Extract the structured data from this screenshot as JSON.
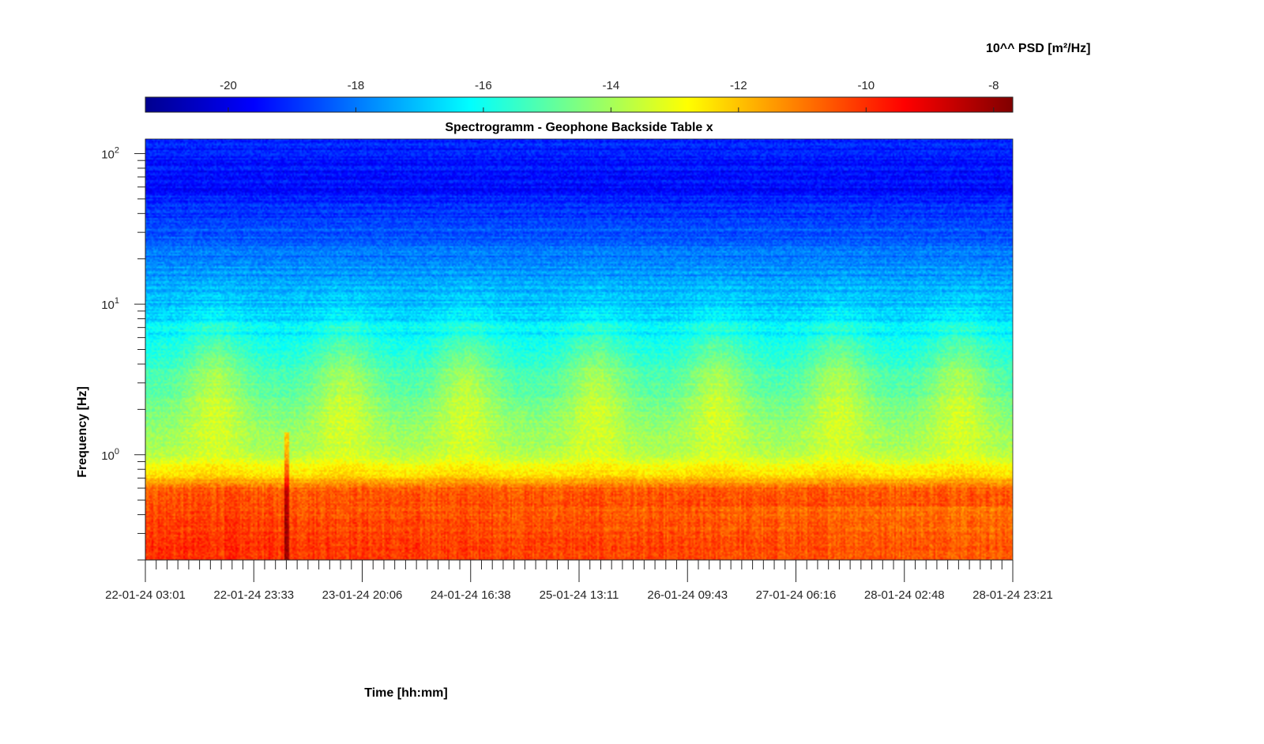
{
  "chart_data": {
    "type": "heatmap",
    "title": "Spectrogramm - Geophone Backside Table x",
    "xlabel": "Time [hh:mm]",
    "ylabel": "Frequency [Hz]",
    "y_scale": "log",
    "ylim": [
      0.2,
      125
    ],
    "y_ticks": [
      {
        "base": "10",
        "exp": "0",
        "value": 1
      },
      {
        "base": "10",
        "exp": "1",
        "value": 10
      },
      {
        "base": "10",
        "exp": "2",
        "value": 100
      }
    ],
    "x_tick_labels": [
      "22-01-24 03:01",
      "22-01-24 23:33",
      "23-01-24 20:06",
      "24-01-24 16:38",
      "25-01-24 13:11",
      "26-01-24 09:43",
      "27-01-24 06:16",
      "28-01-24 02:48",
      "28-01-24 23:21"
    ],
    "colorbar": {
      "label": "10^^ PSD [m²/Hz]",
      "range": [
        -21.3,
        -7.7
      ],
      "ticks": [
        "-20",
        "-18",
        "-16",
        "-14",
        "-12",
        "-10",
        "-8"
      ],
      "tick_values": [
        -20,
        -18,
        -16,
        -14,
        -12,
        -10,
        -8
      ],
      "colormap": "jet",
      "location": "top"
    },
    "psd_profile_log10": [
      {
        "freq": 0.2,
        "value": -9.9
      },
      {
        "freq": 0.4,
        "value": -10.3
      },
      {
        "freq": 0.6,
        "value": -10.8
      },
      {
        "freq": 0.7,
        "value": -12.2
      },
      {
        "freq": 1.0,
        "value": -13.8
      },
      {
        "freq": 2.0,
        "value": -14.6
      },
      {
        "freq": 4.0,
        "value": -15.5
      },
      {
        "freq": 10,
        "value": -17.0
      },
      {
        "freq": 30,
        "value": -18.4
      },
      {
        "freq": 60,
        "value": -19.5
      },
      {
        "freq": 125,
        "value": -19.2
      }
    ]
  }
}
